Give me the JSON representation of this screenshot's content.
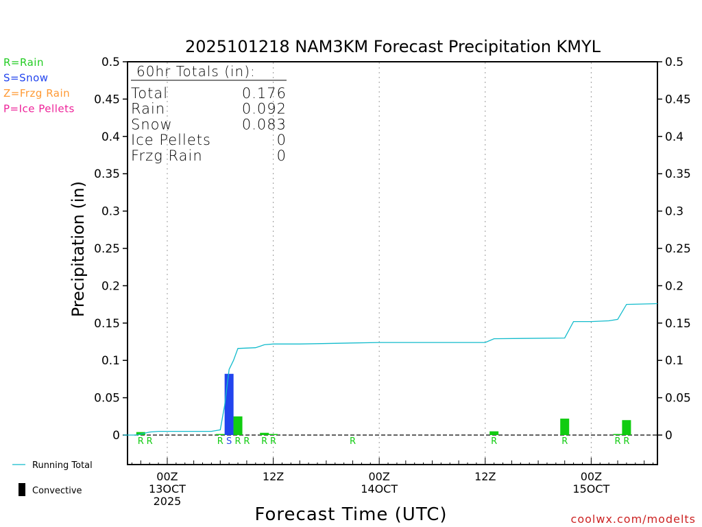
{
  "chart_data": {
    "type": "bar",
    "title": "2025101218 NAM3KM Forecast Precipitation KMYL",
    "ylabel": "Precipitation  (in)",
    "xlabel": "Forecast Time (UTC)",
    "ylim": [
      0,
      0.5
    ],
    "yticks": [
      "0",
      "0.05",
      "0.1",
      "0.15",
      "0.2",
      "0.25",
      "0.3",
      "0.35",
      "0.4",
      "0.45",
      "0.5"
    ],
    "x_range_hours": [
      -4.5,
      55.5
    ],
    "xticks": [
      {
        "hour": 0,
        "lines": [
          "00Z",
          "13OCT",
          "2025"
        ]
      },
      {
        "hour": 12,
        "lines": [
          "12Z"
        ]
      },
      {
        "hour": 24,
        "lines": [
          "00Z",
          "14OCT"
        ]
      },
      {
        "hour": 36,
        "lines": [
          "12Z"
        ]
      },
      {
        "hour": 48,
        "lines": [
          "00Z",
          "15OCT"
        ]
      }
    ],
    "grid": "vertical dotted lines at major ticks",
    "dashed_zero_line": true,
    "totals_box": {
      "heading": "60hr Totals (in):",
      "rows": [
        {
          "label": "Total",
          "value": "0.176"
        },
        {
          "label": "Rain",
          "value": "0.092"
        },
        {
          "label": "Snow",
          "value": "0.083"
        },
        {
          "label": "Ice Pellets",
          "value": "0"
        },
        {
          "label": "Frzg Rain",
          "value": "0"
        }
      ]
    },
    "type_legend": [
      {
        "text": "R=Rain",
        "color": "#22cc22"
      },
      {
        "text": "S=Snow",
        "color": "#2244ee"
      },
      {
        "text": "Z=Frzg Rain",
        "color": "#ff9933"
      },
      {
        "text": "P=Ice Pellets",
        "color": "#ee2299"
      }
    ],
    "bars": [
      {
        "hour": -3,
        "value": 0.004,
        "ptype": "R"
      },
      {
        "hour": -2,
        "value": 0.0,
        "ptype": "R"
      },
      {
        "hour": 6,
        "value": 0.001,
        "ptype": "R"
      },
      {
        "hour": 7,
        "value": 0.082,
        "ptype": "S"
      },
      {
        "hour": 8,
        "value": 0.025,
        "ptype": "R"
      },
      {
        "hour": 9,
        "value": 0.0,
        "ptype": "R"
      },
      {
        "hour": 11,
        "value": 0.003,
        "ptype": "R"
      },
      {
        "hour": 12,
        "value": 0.001,
        "ptype": "R"
      },
      {
        "hour": 21,
        "value": 0.0,
        "ptype": "R"
      },
      {
        "hour": 37,
        "value": 0.005,
        "ptype": "R"
      },
      {
        "hour": 45,
        "value": 0.022,
        "ptype": "R"
      },
      {
        "hour": 51,
        "value": 0.001,
        "ptype": "R"
      },
      {
        "hour": 52,
        "value": 0.02,
        "ptype": "R"
      }
    ],
    "running_total": [
      [
        -5,
        0.0
      ],
      [
        -3.5,
        0.0
      ],
      [
        -2,
        0.004
      ],
      [
        -1,
        0.005
      ],
      [
        0,
        0.005
      ],
      [
        3,
        0.005
      ],
      [
        5,
        0.005
      ],
      [
        6,
        0.007
      ],
      [
        6.5,
        0.04
      ],
      [
        7,
        0.088
      ],
      [
        7.5,
        0.1
      ],
      [
        8,
        0.116
      ],
      [
        10,
        0.117
      ],
      [
        11,
        0.121
      ],
      [
        12,
        0.122
      ],
      [
        15,
        0.122
      ],
      [
        24,
        0.124
      ],
      [
        36,
        0.124
      ],
      [
        37,
        0.129
      ],
      [
        45,
        0.13
      ],
      [
        46,
        0.152
      ],
      [
        48,
        0.152
      ],
      [
        50,
        0.153
      ],
      [
        51,
        0.155
      ],
      [
        52,
        0.175
      ],
      [
        55.5,
        0.176
      ]
    ],
    "series_legend": [
      {
        "name": "Running Total",
        "color": "#11bbcc"
      },
      {
        "name": "Convective",
        "color": "#000000"
      }
    ],
    "colors": {
      "rain": "#11cc11",
      "snow": "#2244ee",
      "running_total": "#11bbcc"
    },
    "credit": "coolwx.com/modelts"
  }
}
